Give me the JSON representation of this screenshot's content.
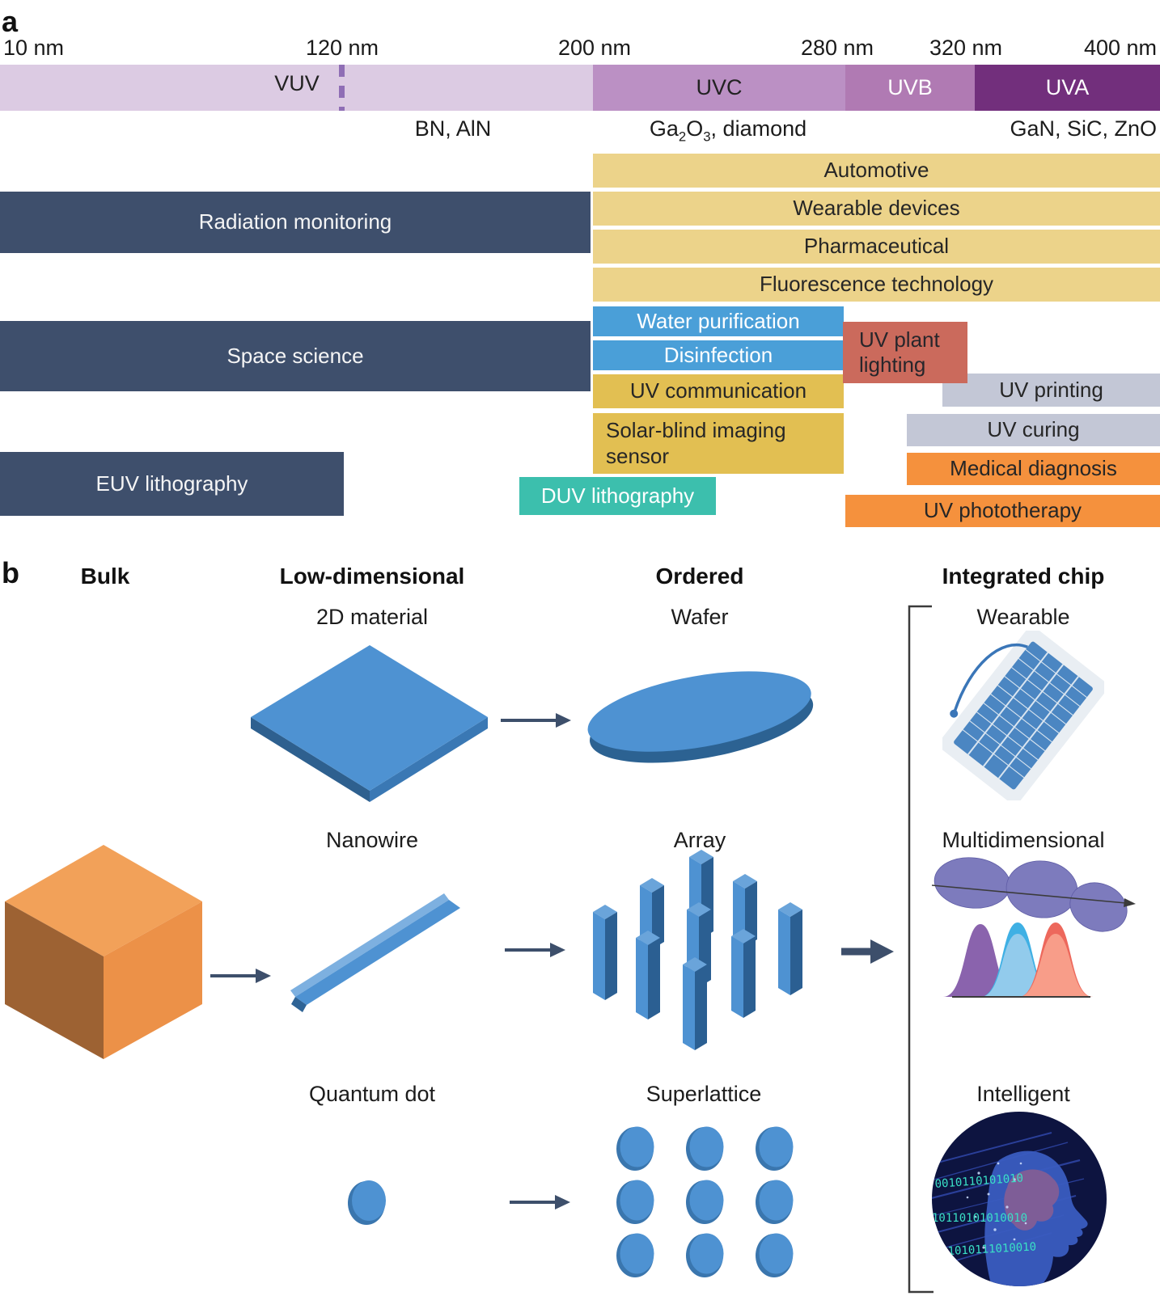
{
  "colors": {
    "band_vuv": "#dccbe3",
    "band_uvc": "#bb90c4",
    "band_uvb": "#b07ab3",
    "band_uva": "#722f7c",
    "navy_bar": "#3e4f6c",
    "yellow_bar": "#ecd38a",
    "gold_bar": "#e2bf52",
    "blue_bar": "#4a9fd8",
    "red_bar": "#cb6a5c",
    "grey_bar": "#c3c7d6",
    "orange_bar": "#f5913d",
    "teal_bar": "#3cbfad",
    "shape_blue": "#4e92d2",
    "cube_orange": "#ec9148",
    "arrow": "#3d4f6b"
  },
  "panel_a": {
    "panel_label": "a",
    "ticks": [
      "10 nm",
      "120 nm",
      "200 nm",
      "280 nm",
      "320 nm",
      "400 nm"
    ],
    "bands": [
      "VUV",
      "UVC",
      "UVB",
      "UVA"
    ],
    "materials": {
      "vuv": "BN, AlN",
      "uvc_parts": {
        "t1": "Ga",
        "s1": "2",
        "t2": "O",
        "s2": "3",
        "t3": ", diamond"
      },
      "uva": "GaN, SiC, ZnO"
    },
    "science_bars": {
      "radiation_monitoring": "Radiation monitoring",
      "space_science": "Space science",
      "euv_lithography": "EUV lithography"
    },
    "applications": {
      "automotive": "Automotive",
      "wearable_devices": "Wearable devices",
      "pharmaceutical": "Pharmaceutical",
      "fluorescence": "Fluorescence technology",
      "water_purification": "Water purification",
      "disinfection": "Disinfection",
      "uv_communication": "UV communication",
      "solar_blind": "Solar-blind imaging sensor",
      "uv_plant_lighting": "UV plant lighting",
      "uv_printing": "UV printing",
      "uv_curing": "UV curing",
      "medical_diagnosis": "Medical diagnosis",
      "uv_phototherapy": "UV phototherapy",
      "duv_lithography": "DUV lithography"
    }
  },
  "panel_b": {
    "panel_label": "b",
    "column_headers": [
      "Bulk",
      "Low-dimensional",
      "Ordered",
      "Integrated chip"
    ],
    "item_labels": {
      "two_d_material": "2D material",
      "wafer": "Wafer",
      "wearable": "Wearable",
      "nanowire": "Nanowire",
      "array": "Array",
      "multidimensional": "Multidimensional",
      "quantum_dot": "Quantum dot",
      "superlattice": "Superlattice",
      "intelligent": "Intelligent"
    },
    "intelligent_binary": [
      "0010110101010",
      "10110101010010",
      "001010111010010"
    ]
  }
}
